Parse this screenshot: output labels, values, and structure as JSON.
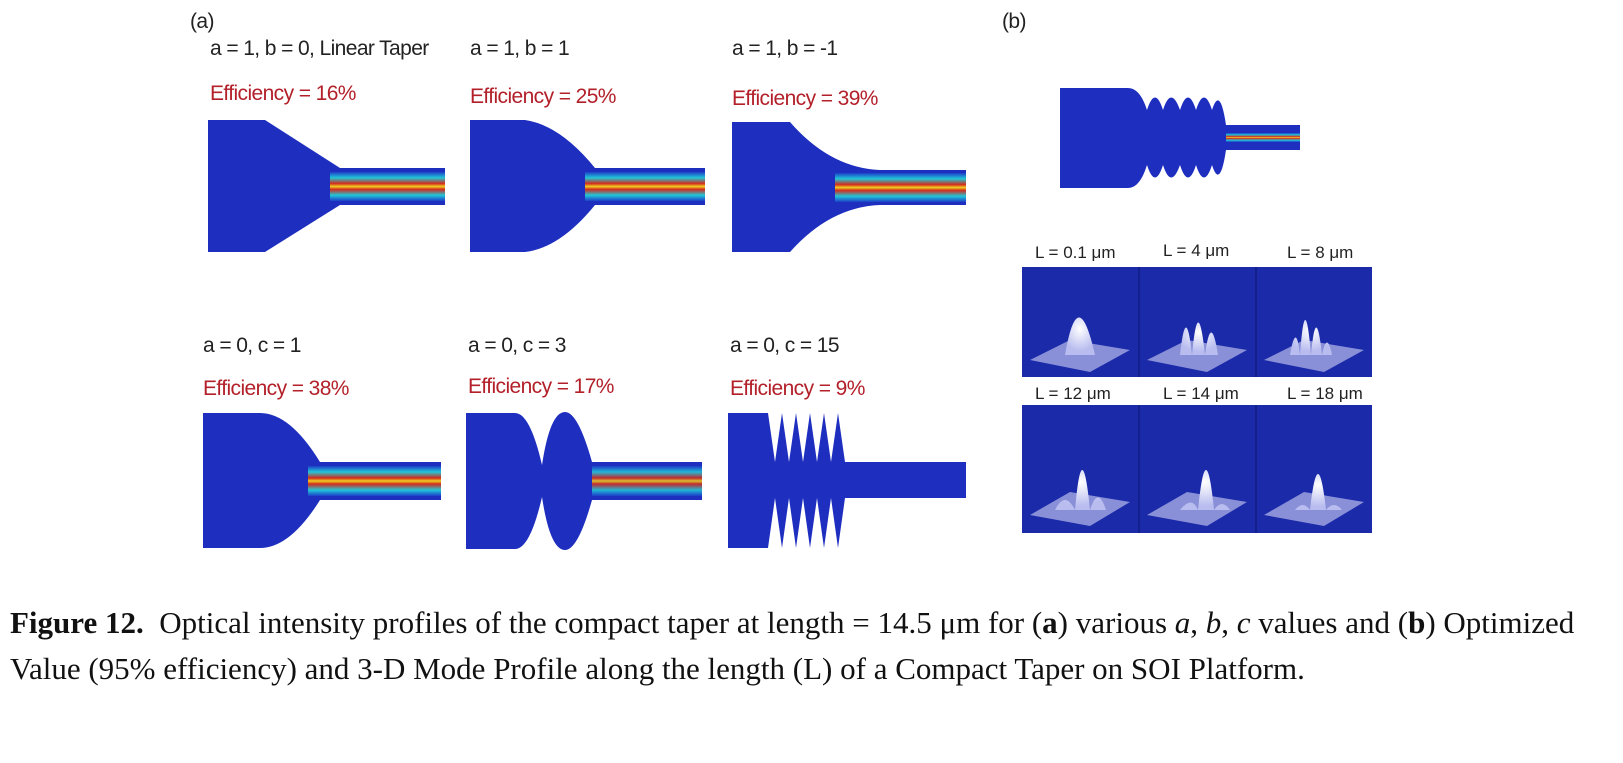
{
  "panel_a": {
    "label": "(a)",
    "panels": [
      {
        "params": "a = 1, b = 0, Linear Taper",
        "efficiency": "Efficiency = 16%"
      },
      {
        "params": "a = 1, b = 1",
        "efficiency": "Efficiency = 25%"
      },
      {
        "params": "a = 1, b = -1",
        "efficiency": "Efficiency = 39%"
      },
      {
        "params": "a = 0, c = 1",
        "efficiency": "Efficiency = 38%"
      },
      {
        "params": "a = 0, c = 3",
        "efficiency": "Efficiency = 17%"
      },
      {
        "params": "a = 0, c = 15",
        "efficiency": "Efficiency = 9%"
      }
    ]
  },
  "panel_b": {
    "label": "(b)",
    "modes": [
      "L = 0.1 μm",
      "L = 4 μm",
      "L = 8 μm",
      "L = 12 μm",
      "L = 14 μm",
      "L = 18 μm"
    ]
  },
  "caption": {
    "label": "Figure 12.",
    "segments": [
      "Optical intensity profiles of the compact taper at length = 14.5 μm for (",
      "a",
      ") various ",
      "a",
      ", ",
      "b",
      ", ",
      "c",
      " values and (",
      "b",
      ") Optimized Value (95% efficiency) and 3-D Mode Profile along the length (L) of a Compact Taper on SOI Platform."
    ]
  }
}
